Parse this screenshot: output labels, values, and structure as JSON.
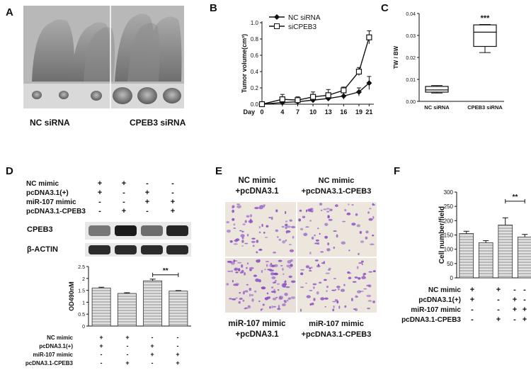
{
  "panels": {
    "a": "A",
    "b": "B",
    "c": "C",
    "d": "D",
    "e": "E",
    "f": "F"
  },
  "panel_a": {
    "left_label": "NC siRNA",
    "right_label": "CPEB3 siRNA"
  },
  "chart_data": [
    {
      "id": "B",
      "type": "line",
      "x": [
        0,
        4,
        7,
        10,
        13,
        16,
        19,
        21
      ],
      "x_tick_labels": [
        "Day",
        "0",
        "4",
        "7",
        "10",
        "13",
        "16",
        "19",
        "21"
      ],
      "ylabel": "Tumor volume(cm³)",
      "xlabel": "",
      "ylim": [
        0,
        1.0
      ],
      "yticks": [
        "0.0",
        "0.2",
        "0.4",
        "0.6",
        "0.8",
        "1.0"
      ],
      "series": [
        {
          "name": "NC siRNA",
          "marker": "filled-diamond",
          "values": [
            0.0,
            0.02,
            0.03,
            0.05,
            0.07,
            0.1,
            0.15,
            0.26
          ],
          "errors": [
            0.01,
            0.02,
            0.02,
            0.03,
            0.03,
            0.04,
            0.05,
            0.08
          ]
        },
        {
          "name": "siCPEB3",
          "marker": "open-square",
          "values": [
            0.0,
            0.06,
            0.05,
            0.09,
            0.11,
            0.17,
            0.4,
            0.82
          ],
          "errors": [
            0.02,
            0.06,
            0.04,
            0.06,
            0.07,
            0.04,
            0.05,
            0.08
          ]
        }
      ],
      "legend": "top-left"
    },
    {
      "id": "C",
      "type": "box",
      "categories": [
        "NC siRNA",
        "CPEB3 siRNA"
      ],
      "ylabel": "TW / BW",
      "ylim": [
        0,
        0.04
      ],
      "yticks": [
        "0.00",
        "0.01",
        "0.02",
        "0.03",
        "0.04"
      ],
      "boxes": [
        {
          "min": 0.0038,
          "q1": 0.0042,
          "median": 0.0052,
          "q3": 0.0068,
          "max": 0.0072
        },
        {
          "min": 0.0222,
          "q1": 0.025,
          "median": 0.0315,
          "q3": 0.0348,
          "max": 0.035
        }
      ],
      "annotation": "***"
    },
    {
      "id": "D",
      "type": "bar",
      "categories": [
        "1",
        "2",
        "3",
        "4"
      ],
      "values": [
        1.6,
        1.37,
        1.9,
        1.47
      ],
      "errors": [
        0.03,
        0.03,
        0.07,
        0.02
      ],
      "ylabel": "OD490nM",
      "ylim": [
        0,
        2.5
      ],
      "yticks": [
        "0",
        "0.5",
        "1",
        "1.5",
        "2",
        "2.5"
      ],
      "annotation": "**"
    },
    {
      "id": "F",
      "type": "bar",
      "categories": [
        "1",
        "2",
        "3",
        "4"
      ],
      "values": [
        155,
        123,
        185,
        143
      ],
      "errors": [
        8,
        7,
        25,
        9
      ],
      "ylabel": "Cell number/field",
      "ylim": [
        0,
        300
      ],
      "yticks": [
        "0",
        "50",
        "100",
        "150",
        "200",
        "250",
        "300"
      ],
      "annotation": "**"
    }
  ],
  "condition_table": {
    "rows": [
      {
        "label": "NC mimic",
        "signs": [
          "+",
          "+",
          "-",
          "-"
        ]
      },
      {
        "label": "pcDNA3.1(+)",
        "signs": [
          "+",
          "-",
          "+",
          "-"
        ]
      },
      {
        "label": "miR-107 mimic",
        "signs": [
          "-",
          "-",
          "+",
          "+"
        ]
      },
      {
        "label": "pcDNA3.1-CPEB3",
        "signs": [
          "-",
          "+",
          "-",
          "+"
        ]
      }
    ]
  },
  "panel_d": {
    "blot_labels": [
      "CPEB3",
      "β-ACTIN"
    ]
  },
  "panel_e": {
    "top_left": [
      "NC mimic",
      "+pcDNA3.1"
    ],
    "top_right": [
      "NC mimic",
      "+pcDNA3.1-CPEB3"
    ],
    "bottom_left": [
      "miR-107 mimic",
      "+pcDNA3.1"
    ],
    "bottom_right": [
      "miR-107 mimic",
      "+pcDNA3.1-CPEB3"
    ]
  },
  "colors": {
    "bar_fill": "#d6d6d6",
    "stain": "#8a4fc4",
    "blot_band": "#1a1a1a",
    "photo_bg": "#9a9a9a"
  }
}
